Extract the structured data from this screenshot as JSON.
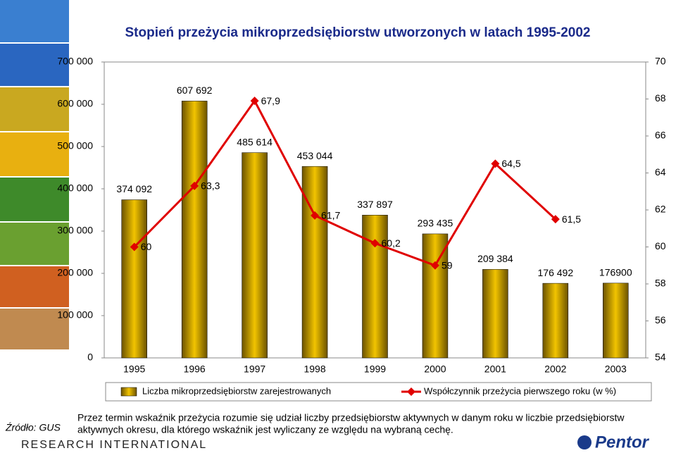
{
  "chart_data": {
    "type": "combo",
    "title": "Stopień przeżycia mikroprzedsiębiorstw utworzonych w latach 1995-2002",
    "categories": [
      "1995",
      "1996",
      "1997",
      "1998",
      "1999",
      "2000",
      "2001",
      "2002",
      "2003"
    ],
    "series": [
      {
        "name": "Liczba mikroprzedsiębiorstw zarejestrowanych",
        "type": "bar",
        "axis": "y",
        "color": "#c8a000",
        "values": [
          374092,
          607692,
          485614,
          453044,
          337897,
          293435,
          209384,
          176492,
          176900
        ],
        "value_labels": [
          "374 092",
          "607 692",
          "485 614",
          "453 044",
          "337 897",
          "293 435",
          "209 384",
          "176 492",
          "176900"
        ]
      },
      {
        "name": "Współczynnik przeżycia pierwszego roku (w %)",
        "type": "line",
        "axis": "y2",
        "color": "#e00000",
        "values": [
          60,
          63.3,
          67.9,
          61.7,
          60.2,
          59,
          64.5,
          61.5,
          null
        ],
        "value_labels": [
          "60",
          "63,3",
          "67,9",
          "61,7",
          "60,2",
          "59",
          "64,5",
          "61,5",
          null
        ]
      }
    ],
    "ylim": [
      0,
      700000
    ],
    "yticks": [
      0,
      {
        "value": 100000,
        "label": "100 000"
      },
      {
        "value": 200000,
        "label": "200 000"
      },
      {
        "value": 300000,
        "label": "300 000"
      },
      {
        "value": 400000,
        "label": "400 000"
      },
      {
        "value": 500000,
        "label": "500 000"
      },
      {
        "value": 600000,
        "label": "600 000"
      },
      {
        "value": 700000,
        "label": "700 000"
      }
    ],
    "y2lim": [
      54,
      70
    ],
    "y2ticks": [
      54,
      56,
      58,
      60,
      62,
      64,
      66,
      68,
      70
    ],
    "legend": "bottom"
  },
  "note": [
    "Przez termin  wskaźnik przeżycia  rozumie się udział liczby przedsiębiorstw aktywnych w danym roku w liczbie przedsiębiorstw",
    "aktywnych okresu, dla którego wskaźnik jest wyliczany ze względu na wybraną cechę."
  ],
  "source": "Źródło: GUS",
  "logos": [
    "RESEARCH INTERNATIONAL",
    "Pentor"
  ]
}
